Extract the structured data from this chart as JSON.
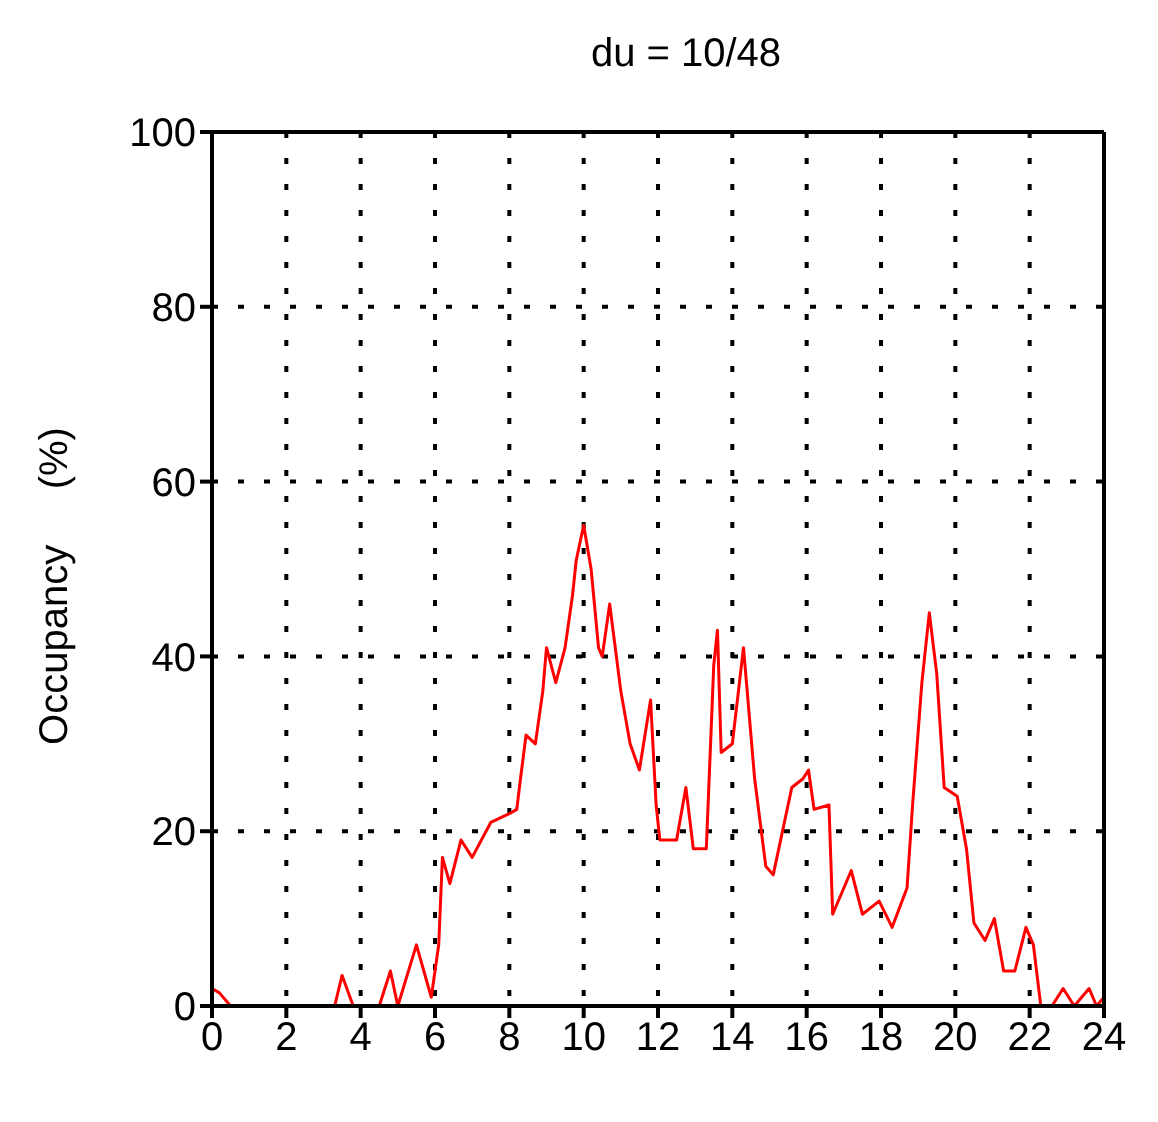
{
  "chart_data": {
    "type": "line",
    "title": "du = 10/48",
    "ylabel": "Occupancy     (%)",
    "x": [
      0,
      0.2,
      0.5,
      3.3,
      3.5,
      3.8,
      4.5,
      4.8,
      5.0,
      5.5,
      5.9,
      6.1,
      6.2,
      6.4,
      6.7,
      7.0,
      7.5,
      8.0,
      8.2,
      8.3,
      8.45,
      8.7,
      8.9,
      9.0,
      9.25,
      9.5,
      9.7,
      9.8,
      10.0,
      10.2,
      10.4,
      10.5,
      10.7,
      11.0,
      11.25,
      11.5,
      11.8,
      11.95,
      12.05,
      12.5,
      12.75,
      12.95,
      13.3,
      13.5,
      13.6,
      13.7,
      14.0,
      14.3,
      14.6,
      14.9,
      15.1,
      15.6,
      15.9,
      16.05,
      16.2,
      16.6,
      16.7,
      17.2,
      17.5,
      17.95,
      18.3,
      18.7,
      18.85,
      19.1,
      19.3,
      19.5,
      19.7,
      20.05,
      20.3,
      20.5,
      20.8,
      21.05,
      21.3,
      21.6,
      21.9,
      22.1,
      22.3,
      22.6,
      22.9,
      23.2,
      23.6,
      23.8,
      24
    ],
    "series": [
      {
        "color": "#ff0000",
        "values": [
          2,
          1.5,
          0,
          0,
          3.5,
          0,
          0,
          4,
          0,
          7,
          1,
          7,
          17,
          14,
          19,
          17,
          21,
          22,
          22.5,
          26,
          31,
          30,
          36,
          41,
          37,
          41,
          47,
          51,
          55,
          50,
          41,
          40,
          46,
          36,
          30,
          27,
          35,
          23,
          19,
          19,
          25,
          18,
          18,
          39,
          43,
          29,
          30,
          41,
          26,
          16,
          15,
          25,
          26,
          27,
          22.5,
          23,
          10.5,
          15.5,
          10.5,
          12,
          9,
          13.5,
          23,
          37,
          45,
          38,
          25,
          24,
          18,
          9.5,
          7.5,
          10,
          4,
          4,
          9,
          7,
          0,
          0,
          2,
          0,
          2,
          0,
          1
        ]
      }
    ],
    "xlim": [
      0,
      24
    ],
    "xticks": [
      0,
      2,
      4,
      6,
      8,
      10,
      12,
      14,
      16,
      18,
      20,
      22,
      24
    ],
    "ylim": [
      0,
      100
    ],
    "yticks": [
      0,
      20,
      40,
      60,
      80,
      100
    ],
    "grid": true,
    "line_style": "solid",
    "marker": "none"
  }
}
